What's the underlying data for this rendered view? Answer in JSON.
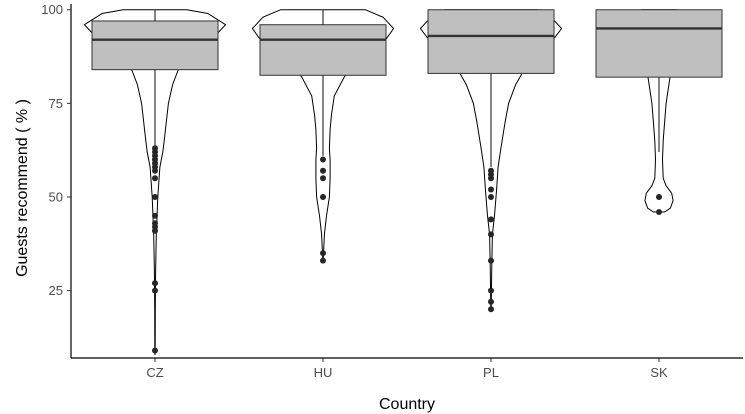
{
  "chart_data": {
    "type": "box-violin",
    "title": "",
    "xlabel": "Country",
    "ylabel": "Guests recommend ( % )",
    "categories": [
      "CZ",
      "HU",
      "PL",
      "SK"
    ],
    "ylim": [
      7,
      101
    ],
    "y_ticks": [
      25,
      50,
      75,
      100
    ],
    "grid": false,
    "legend": "none",
    "box_fill": "#bfbfbf",
    "line_color": "#333333",
    "outlier_color": "#262626",
    "boxes": [
      {
        "category": "CZ",
        "q1": 84,
        "median": 92,
        "q3": 97,
        "whisker_low": 63,
        "whisker_high": 100
      },
      {
        "category": "HU",
        "q1": 82.5,
        "median": 92,
        "q3": 96,
        "whisker_low": 61,
        "whisker_high": 100
      },
      {
        "category": "PL",
        "q1": 83,
        "median": 93,
        "q3": 100,
        "whisker_low": 58,
        "whisker_high": 100
      },
      {
        "category": "SK",
        "q1": 82,
        "median": 95,
        "q3": 100,
        "whisker_low": 62,
        "whisker_high": 100
      }
    ],
    "violins": [
      {
        "category": "CZ",
        "profile": [
          [
            8,
            0.003
          ],
          [
            20,
            0.004
          ],
          [
            30,
            0.008
          ],
          [
            40,
            0.018
          ],
          [
            50,
            0.04
          ],
          [
            58,
            0.07
          ],
          [
            62,
            0.11
          ],
          [
            65,
            0.13
          ],
          [
            70,
            0.16
          ],
          [
            75,
            0.19
          ],
          [
            80,
            0.25
          ],
          [
            84,
            0.33
          ],
          [
            88,
            0.5
          ],
          [
            92,
            0.8
          ],
          [
            96,
            1.0
          ],
          [
            99,
            0.75
          ],
          [
            100,
            0.45
          ]
        ]
      },
      {
        "category": "HU",
        "profile": [
          [
            33,
            0.003
          ],
          [
            40,
            0.02
          ],
          [
            45,
            0.05
          ],
          [
            50,
            0.09
          ],
          [
            55,
            0.1
          ],
          [
            58,
            0.1
          ],
          [
            60,
            0.1
          ],
          [
            63,
            0.09
          ],
          [
            68,
            0.1
          ],
          [
            72,
            0.12
          ],
          [
            77,
            0.16
          ],
          [
            82,
            0.3
          ],
          [
            87,
            0.5
          ],
          [
            91,
            0.85
          ],
          [
            95,
            1.0
          ],
          [
            98,
            0.85
          ],
          [
            100,
            0.6
          ]
        ]
      },
      {
        "category": "PL",
        "profile": [
          [
            20,
            0.003
          ],
          [
            30,
            0.01
          ],
          [
            40,
            0.02
          ],
          [
            45,
            0.05
          ],
          [
            52,
            0.08
          ],
          [
            58,
            0.1
          ],
          [
            63,
            0.14
          ],
          [
            70,
            0.2
          ],
          [
            75,
            0.25
          ],
          [
            80,
            0.35
          ],
          [
            85,
            0.5
          ],
          [
            90,
            0.8
          ],
          [
            95,
            1.0
          ],
          [
            98,
            0.85
          ],
          [
            100,
            0.65
          ]
        ]
      },
      {
        "category": "SK",
        "profile": [
          [
            46,
            0.08
          ],
          [
            47,
            0.16
          ],
          [
            49,
            0.2
          ],
          [
            51,
            0.18
          ],
          [
            53,
            0.1
          ],
          [
            55,
            0.06
          ],
          [
            60,
            0.05
          ],
          [
            65,
            0.06
          ],
          [
            70,
            0.08
          ],
          [
            75,
            0.1
          ],
          [
            80,
            0.14
          ],
          [
            85,
            0.18
          ],
          [
            90,
            0.2
          ],
          [
            95,
            0.22
          ],
          [
            98,
            0.3
          ],
          [
            99,
            0.3
          ],
          [
            100,
            0.25
          ]
        ]
      }
    ],
    "outliers": [
      {
        "category": "CZ",
        "values": [
          9,
          25,
          27,
          41,
          42,
          43,
          45,
          50,
          55,
          57,
          58,
          59,
          60,
          61,
          62,
          63
        ]
      },
      {
        "category": "HU",
        "values": [
          33,
          35,
          50,
          55,
          57,
          60
        ]
      },
      {
        "category": "PL",
        "values": [
          20,
          22,
          25,
          33,
          40,
          44,
          50,
          52,
          55,
          56,
          57
        ]
      },
      {
        "category": "SK",
        "values": [
          46,
          50
        ]
      }
    ]
  }
}
